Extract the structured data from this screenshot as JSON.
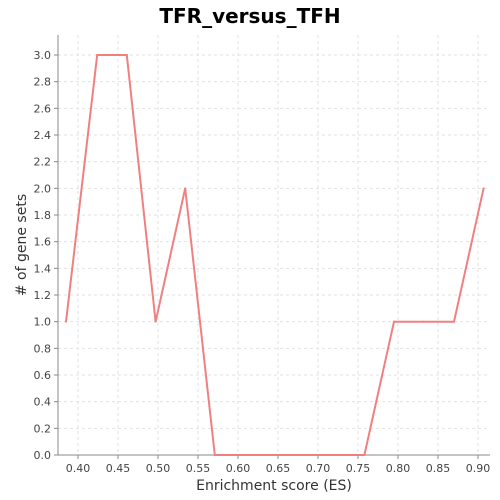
{
  "chart_data": {
    "type": "line",
    "title": "TFR_versus_TFH",
    "xlabel": "Enrichment score (ES)",
    "ylabel": "# of gene sets",
    "xlim": [
      0.375,
      0.915
    ],
    "ylim": [
      0.0,
      3.15
    ],
    "x_ticks": [
      "0.40",
      "0.45",
      "0.50",
      "0.55",
      "0.60",
      "0.65",
      "0.70",
      "0.75",
      "0.80",
      "0.85",
      "0.90"
    ],
    "y_ticks": [
      "0.0",
      "0.2",
      "0.4",
      "0.6",
      "0.8",
      "1.0",
      "1.2",
      "1.4",
      "1.6",
      "1.8",
      "2.0",
      "2.2",
      "2.4",
      "2.6",
      "2.8",
      "3.0"
    ],
    "grid": true,
    "legend": "none",
    "series": [
      {
        "color": "#f08080",
        "x": [
          0.385,
          0.424,
          0.461,
          0.497,
          0.534,
          0.571,
          0.609,
          0.646,
          0.683,
          0.72,
          0.758,
          0.795,
          0.832,
          0.87,
          0.907
        ],
        "y": [
          1.0,
          3.0,
          3.0,
          1.0,
          2.0,
          0.0,
          0.0,
          0.0,
          0.0,
          0.0,
          0.0,
          1.0,
          1.0,
          1.0,
          2.0
        ]
      }
    ]
  }
}
